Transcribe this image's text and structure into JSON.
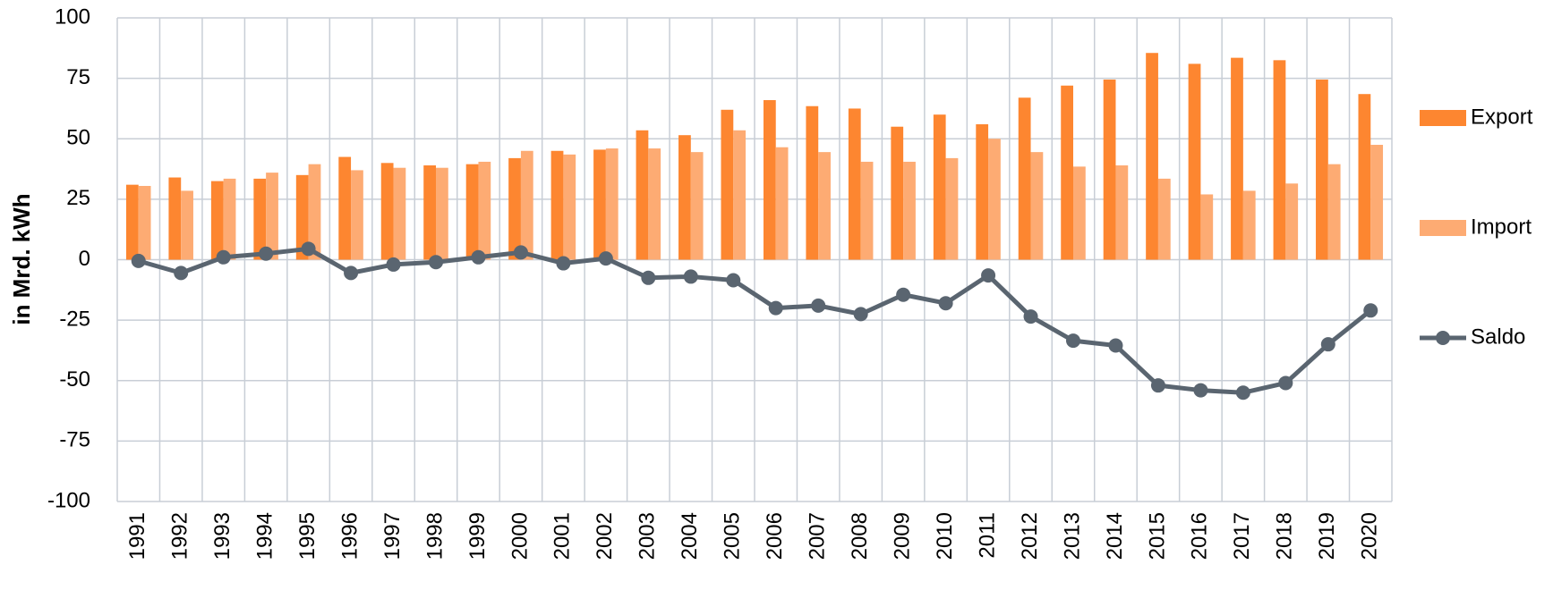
{
  "chart_data": {
    "type": "bar",
    "y_axis_label": "in Mrd. kWh",
    "categories": [
      "1991",
      "1992",
      "1993",
      "1994",
      "1995",
      "1996",
      "1997",
      "1998",
      "1999",
      "2000",
      "2001",
      "2002",
      "2003",
      "2004",
      "2005",
      "2006",
      "2007",
      "2008",
      "2009",
      "2010",
      "2011",
      "2012",
      "2013",
      "2014",
      "2015",
      "2016",
      "2017",
      "2018",
      "2019",
      "2020"
    ],
    "series": [
      {
        "name": "Export",
        "type": "bar",
        "color": "#fd8630",
        "values": [
          31,
          34,
          32.5,
          33.5,
          35,
          42.5,
          40,
          39,
          39.5,
          42,
          45,
          45.5,
          53.5,
          51.5,
          62,
          66,
          63.5,
          62.5,
          55,
          60,
          56,
          67,
          72,
          74.5,
          85.5,
          81,
          83.5,
          82.5,
          74.5,
          68.5
        ]
      },
      {
        "name": "Import",
        "type": "bar",
        "color": "#fdab73",
        "values": [
          30.5,
          28.5,
          33.5,
          36,
          39.5,
          37,
          38,
          38,
          40.5,
          45,
          43.5,
          46,
          46,
          44.5,
          53.5,
          46.5,
          44.5,
          40.5,
          40.5,
          42,
          50,
          44.5,
          38.5,
          39,
          33.5,
          27,
          28.5,
          31.5,
          39.5,
          47.5
        ]
      },
      {
        "name": "Saldo",
        "type": "line",
        "color": "#5a6570",
        "values": [
          -0.5,
          -5.5,
          1,
          2.5,
          4.5,
          -5.5,
          -2,
          -1,
          1,
          3,
          -1.5,
          0.5,
          -7.5,
          -7,
          -8.5,
          -20,
          -19,
          -22.5,
          -14.5,
          -18,
          -6.5,
          -23.5,
          -33.5,
          -35.5,
          -52,
          -54,
          -55,
          -51,
          -35,
          -21
        ]
      }
    ],
    "ylim": [
      -100,
      100
    ],
    "yticks": [
      -100,
      -75,
      -50,
      -25,
      0,
      25,
      50,
      75,
      100
    ],
    "grid": true,
    "legend": "right"
  }
}
